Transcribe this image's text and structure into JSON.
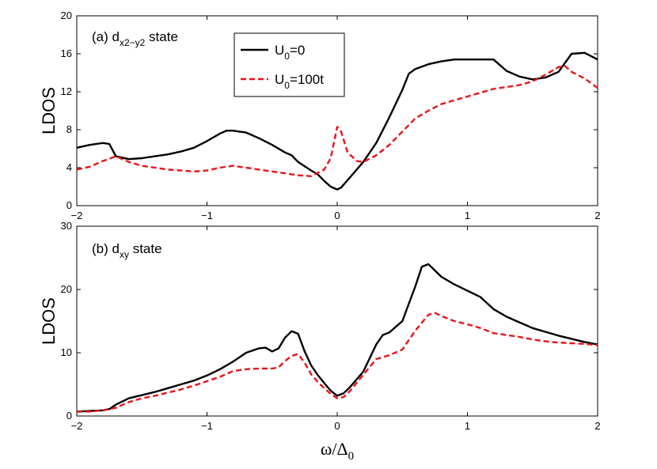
{
  "chart_data": [
    {
      "type": "line",
      "panel_label": "(a) d",
      "panel_label_sub": "x2−y2",
      "panel_label_suffix": " state",
      "ylabel": "LDOS",
      "xlabel": "",
      "xlim": [
        -2,
        2
      ],
      "ylim": [
        0,
        20
      ],
      "xticks": [
        -2,
        -1,
        0,
        1,
        2
      ],
      "yticks": [
        0,
        4,
        8,
        12,
        16,
        20
      ],
      "legend": {
        "position": "top-center",
        "entries": [
          {
            "main": "U",
            "sub": "0",
            "suffix": "=0"
          },
          {
            "main": "U",
            "sub": "0",
            "suffix": "=100t"
          }
        ]
      },
      "series": [
        {
          "name": "U0=0",
          "color": "#000000",
          "style": "solid",
          "x": [
            -2.0,
            -1.9,
            -1.8,
            -1.75,
            -1.7,
            -1.6,
            -1.5,
            -1.4,
            -1.3,
            -1.2,
            -1.1,
            -1.0,
            -0.9,
            -0.85,
            -0.8,
            -0.75,
            -0.7,
            -0.6,
            -0.5,
            -0.4,
            -0.35,
            -0.3,
            -0.2,
            -0.15,
            -0.1,
            -0.05,
            0.0,
            0.03,
            0.1,
            0.2,
            0.3,
            0.4,
            0.5,
            0.55,
            0.6,
            0.7,
            0.8,
            0.9,
            1.0,
            1.1,
            1.2,
            1.3,
            1.4,
            1.5,
            1.6,
            1.7,
            1.8,
            1.9,
            2.0
          ],
          "values": [
            6.1,
            6.4,
            6.6,
            6.5,
            5.2,
            4.9,
            5.0,
            5.2,
            5.4,
            5.7,
            6.1,
            6.8,
            7.6,
            7.9,
            7.9,
            7.8,
            7.7,
            7.1,
            6.4,
            5.6,
            5.3,
            4.6,
            3.7,
            3.3,
            2.6,
            2.0,
            1.7,
            1.9,
            3.0,
            4.6,
            6.6,
            9.3,
            12.2,
            13.9,
            14.4,
            14.9,
            15.2,
            15.4,
            15.4,
            15.4,
            15.4,
            14.2,
            13.6,
            13.3,
            13.5,
            14.1,
            16.0,
            16.1,
            15.4
          ]
        },
        {
          "name": "U0=100t",
          "color": "#e8131a",
          "style": "dashed",
          "x": [
            -2.0,
            -1.9,
            -1.8,
            -1.7,
            -1.6,
            -1.5,
            -1.4,
            -1.3,
            -1.2,
            -1.1,
            -1.0,
            -0.9,
            -0.8,
            -0.7,
            -0.6,
            -0.5,
            -0.4,
            -0.3,
            -0.2,
            -0.1,
            -0.05,
            0.0,
            0.03,
            0.08,
            0.15,
            0.2,
            0.3,
            0.4,
            0.5,
            0.6,
            0.7,
            0.8,
            0.9,
            1.0,
            1.1,
            1.2,
            1.3,
            1.4,
            1.5,
            1.6,
            1.7,
            1.75,
            1.8,
            1.9,
            2.0
          ],
          "values": [
            3.8,
            4.1,
            4.7,
            5.2,
            4.6,
            4.2,
            4.0,
            3.8,
            3.7,
            3.6,
            3.7,
            4.0,
            4.2,
            4.0,
            3.8,
            3.6,
            3.4,
            3.2,
            3.1,
            3.8,
            5.0,
            8.3,
            7.8,
            5.6,
            4.7,
            4.6,
            5.3,
            6.4,
            7.8,
            9.2,
            10.0,
            10.7,
            11.1,
            11.5,
            11.9,
            12.3,
            12.5,
            12.7,
            13.1,
            13.8,
            14.6,
            14.7,
            14.1,
            13.4,
            12.4
          ]
        }
      ]
    },
    {
      "type": "line",
      "panel_label": "(b)  d",
      "panel_label_sub": "xy",
      "panel_label_suffix": " state",
      "ylabel": "LDOS",
      "xlabel_main": "ω/Δ",
      "xlabel_sub": "0",
      "xlim": [
        -2,
        2
      ],
      "ylim": [
        0,
        30
      ],
      "xticks": [
        -2,
        -1,
        0,
        1,
        2
      ],
      "yticks": [
        0,
        10,
        20,
        30
      ],
      "series": [
        {
          "name": "U0=0",
          "color": "#000000",
          "style": "solid",
          "x": [
            -2.0,
            -1.9,
            -1.8,
            -1.75,
            -1.7,
            -1.6,
            -1.5,
            -1.4,
            -1.3,
            -1.2,
            -1.1,
            -1.0,
            -0.9,
            -0.8,
            -0.7,
            -0.6,
            -0.55,
            -0.5,
            -0.45,
            -0.4,
            -0.35,
            -0.3,
            -0.25,
            -0.2,
            -0.15,
            -0.1,
            -0.05,
            0.0,
            0.05,
            0.1,
            0.2,
            0.3,
            0.35,
            0.4,
            0.5,
            0.6,
            0.65,
            0.7,
            0.8,
            0.9,
            1.0,
            1.1,
            1.2,
            1.3,
            1.4,
            1.5,
            1.6,
            1.7,
            1.8,
            1.9,
            2.0
          ],
          "values": [
            0.7,
            0.8,
            0.9,
            1.1,
            1.8,
            2.8,
            3.3,
            3.8,
            4.4,
            5.0,
            5.6,
            6.4,
            7.4,
            8.6,
            10.0,
            10.7,
            10.8,
            10.2,
            10.7,
            12.4,
            13.4,
            13.0,
            10.2,
            8.0,
            6.5,
            5.2,
            4.0,
            3.2,
            3.6,
            4.6,
            7.0,
            11.3,
            12.8,
            13.2,
            15.0,
            20.5,
            23.6,
            24.0,
            22.0,
            20.8,
            19.8,
            18.8,
            16.9,
            15.7,
            14.8,
            13.9,
            13.3,
            12.7,
            12.2,
            11.7,
            11.3
          ]
        },
        {
          "name": "U0=100t",
          "color": "#e8131a",
          "style": "dashed",
          "x": [
            -2.0,
            -1.9,
            -1.8,
            -1.7,
            -1.6,
            -1.5,
            -1.4,
            -1.3,
            -1.2,
            -1.1,
            -1.0,
            -0.9,
            -0.8,
            -0.7,
            -0.6,
            -0.5,
            -0.45,
            -0.4,
            -0.35,
            -0.3,
            -0.25,
            -0.2,
            -0.15,
            -0.1,
            -0.05,
            0.0,
            0.05,
            0.1,
            0.2,
            0.3,
            0.4,
            0.5,
            0.6,
            0.7,
            0.75,
            0.8,
            0.9,
            1.0,
            1.1,
            1.2,
            1.3,
            1.4,
            1.5,
            1.6,
            1.7,
            1.8,
            1.9,
            2.0
          ],
          "values": [
            0.7,
            0.7,
            0.9,
            1.3,
            2.2,
            2.8,
            3.2,
            3.7,
            4.2,
            4.8,
            5.5,
            6.2,
            7.1,
            7.4,
            7.5,
            7.5,
            7.7,
            8.7,
            9.5,
            9.8,
            8.4,
            6.6,
            5.4,
            4.4,
            3.5,
            2.8,
            3.0,
            4.0,
            6.5,
            9.0,
            9.6,
            10.5,
            13.5,
            16.0,
            16.3,
            15.8,
            15.0,
            14.5,
            13.9,
            13.1,
            12.8,
            12.5,
            12.1,
            11.8,
            11.6,
            11.5,
            11.4,
            11.2
          ]
        }
      ]
    }
  ]
}
